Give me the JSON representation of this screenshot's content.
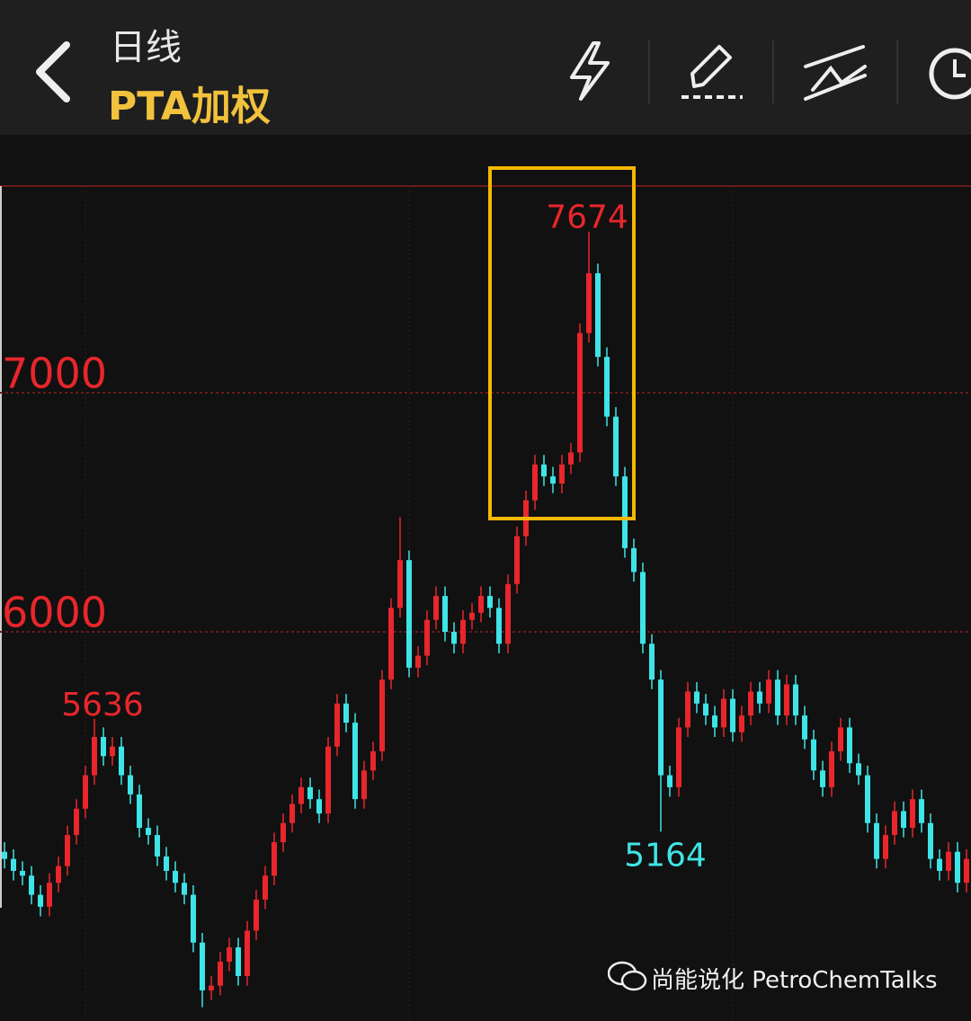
{
  "header": {
    "period": "日线",
    "symbol": "PTA加权"
  },
  "chart_data": {
    "type": "candlestick",
    "open": [
      5080,
      5050,
      5000,
      4980,
      4900,
      4850,
      4950,
      5020,
      5150,
      5260,
      5400,
      5560,
      5480,
      5520,
      5400,
      5320,
      5180,
      5150,
      5060,
      5000,
      4950,
      4900,
      4700,
      4500,
      4520,
      4620,
      4680,
      4560,
      4750,
      4880,
      4980,
      5120,
      5200,
      5280,
      5350,
      5300,
      5240,
      5520,
      5700,
      5620,
      5300,
      5420,
      5500,
      5800,
      6100,
      6300,
      5850,
      5900,
      6050,
      6150,
      6000,
      5950,
      6050,
      6080,
      6150,
      6100,
      5950,
      6200,
      6400,
      6550,
      6700,
      6650,
      6620,
      6700,
      6750,
      7250,
      7500,
      7150,
      6900,
      6650,
      6350,
      6250,
      5950,
      5800,
      5400,
      5350,
      5600,
      5750,
      5700,
      5650,
      5600,
      5720,
      5580,
      5650,
      5750,
      5700,
      5800,
      5650,
      5780,
      5650,
      5550,
      5420,
      5350,
      5500,
      5600,
      5450,
      5400,
      5200,
      5050,
      5150,
      5250,
      5180,
      5300,
      5200,
      5050,
      5000,
      5080,
      4950
    ],
    "high": [
      5120,
      5090,
      5040,
      5020,
      4940,
      4990,
      5060,
      5190,
      5300,
      5440,
      5636,
      5600,
      5560,
      5560,
      5440,
      5360,
      5220,
      5190,
      5100,
      5040,
      4990,
      4940,
      4740,
      4560,
      4660,
      4720,
      4720,
      4790,
      4920,
      5020,
      5160,
      5240,
      5320,
      5390,
      5390,
      5340,
      5560,
      5740,
      5740,
      5660,
      5460,
      5540,
      5840,
      6140,
      6480,
      6340,
      5940,
      6090,
      6190,
      6190,
      6040,
      6090,
      6120,
      6190,
      6190,
      6140,
      6240,
      6440,
      6590,
      6740,
      6740,
      6690,
      6740,
      6790,
      7290,
      7674,
      7540,
      7190,
      6940,
      6690,
      6390,
      6290,
      5990,
      5840,
      5440,
      5640,
      5790,
      5790,
      5740,
      5690,
      5760,
      5760,
      5690,
      5790,
      5790,
      5840,
      5840,
      5820,
      5820,
      5690,
      5590,
      5460,
      5540,
      5640,
      5640,
      5490,
      5440,
      5240,
      5190,
      5290,
      5290,
      5340,
      5340,
      5240,
      5090,
      5120,
      5120,
      5090
    ],
    "low": [
      5010,
      4960,
      4940,
      4860,
      4810,
      4810,
      4910,
      4980,
      5110,
      5220,
      5360,
      5440,
      5440,
      5360,
      5280,
      5140,
      5110,
      5020,
      4960,
      4910,
      4860,
      4660,
      4430,
      4460,
      4480,
      4580,
      4520,
      4520,
      4710,
      4840,
      4940,
      5080,
      5160,
      5240,
      5260,
      5200,
      5200,
      5480,
      5580,
      5260,
      5260,
      5380,
      5460,
      5760,
      6060,
      5810,
      5810,
      5860,
      6010,
      5960,
      5910,
      5910,
      6010,
      6040,
      6060,
      5910,
      5910,
      6160,
      6360,
      6510,
      6610,
      6580,
      6580,
      6660,
      6710,
      7210,
      7110,
      6860,
      6610,
      6310,
      6210,
      5910,
      5760,
      5164,
      5310,
      5310,
      5560,
      5660,
      5610,
      5560,
      5560,
      5540,
      5540,
      5610,
      5660,
      5660,
      5610,
      5610,
      5610,
      5510,
      5380,
      5310,
      5310,
      5460,
      5410,
      5360,
      5160,
      5010,
      5010,
      5110,
      5140,
      5140,
      5160,
      5010,
      4960,
      4960,
      4910,
      4910
    ],
    "close": [
      5050,
      5000,
      4980,
      4900,
      4850,
      4950,
      5020,
      5150,
      5260,
      5400,
      5560,
      5480,
      5520,
      5400,
      5320,
      5180,
      5150,
      5060,
      5000,
      4950,
      4900,
      4700,
      4500,
      4520,
      4620,
      4680,
      4560,
      4750,
      4880,
      4980,
      5120,
      5200,
      5280,
      5350,
      5300,
      5240,
      5520,
      5700,
      5620,
      5300,
      5420,
      5500,
      5800,
      6100,
      6300,
      5850,
      5900,
      6050,
      6150,
      6000,
      5950,
      6050,
      6080,
      6150,
      6100,
      5950,
      6200,
      6400,
      6550,
      6700,
      6650,
      6620,
      6700,
      6750,
      7250,
      7500,
      7150,
      6900,
      6650,
      6350,
      6250,
      5950,
      5800,
      5400,
      5350,
      5600,
      5750,
      5700,
      5650,
      5600,
      5720,
      5580,
      5650,
      5750,
      5700,
      5800,
      5650,
      5780,
      5650,
      5550,
      5420,
      5350,
      5500,
      5600,
      5450,
      5400,
      5200,
      5050,
      5150,
      5250,
      5180,
      5300,
      5200,
      5050,
      5000,
      5080,
      4950,
      5050
    ],
    "up_color": "#e8262b",
    "down_color": "#3ee4e6",
    "ylim": [
      4372,
      8079
    ],
    "yticks": [
      6000,
      7000
    ],
    "grid": true
  },
  "watermark": "尚能说化 PetroChemTalks"
}
